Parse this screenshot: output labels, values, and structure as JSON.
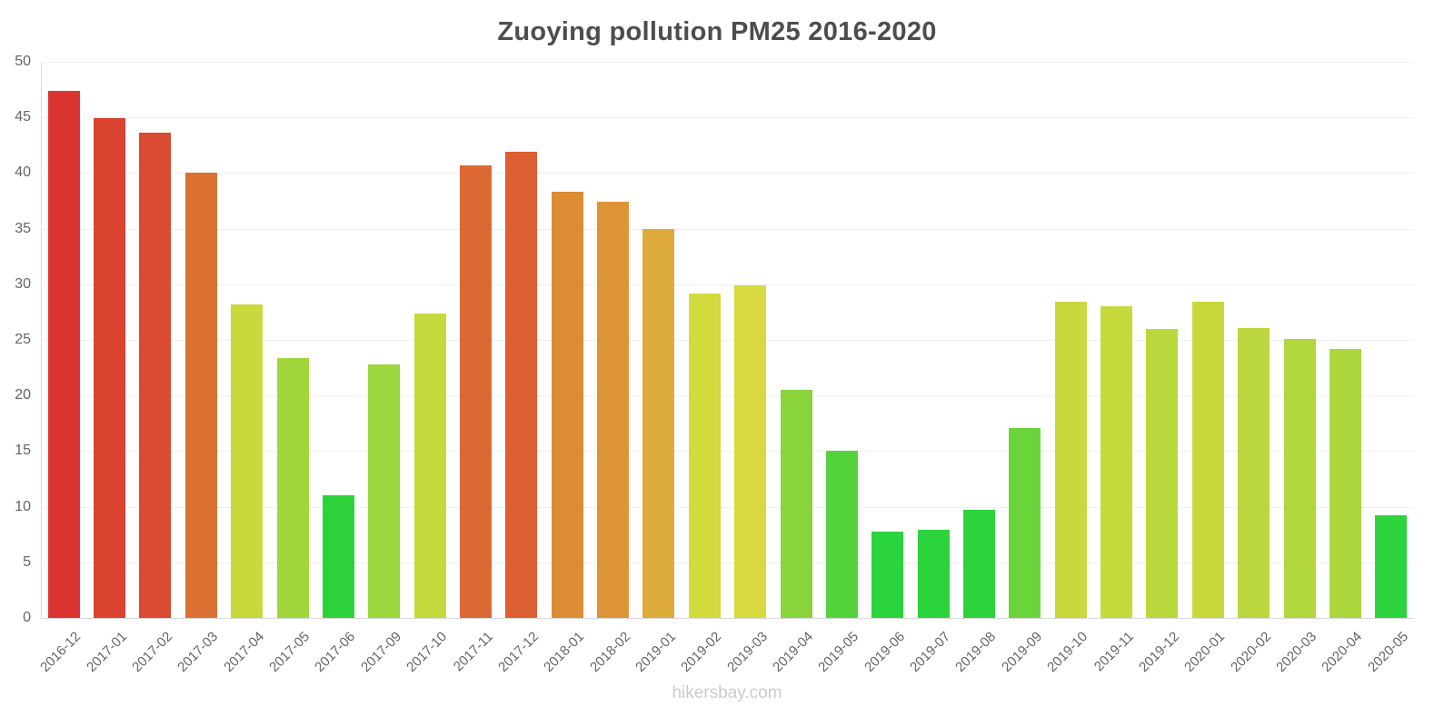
{
  "page": {
    "title": "Zuoying pollution PM25 2016-2020",
    "watermark": "hikersbay.com"
  },
  "chart_data": {
    "type": "bar",
    "title": "Zuoying pollution PM25 2016-2020",
    "xlabel": "",
    "ylabel": "",
    "ylim": [
      0,
      50
    ],
    "yticks": [
      0,
      5,
      10,
      15,
      20,
      25,
      30,
      35,
      40,
      45,
      50
    ],
    "grid": true,
    "legend": false,
    "categories": [
      "2016-12",
      "2017-01",
      "2017-02",
      "2017-03",
      "2017-04",
      "2017-05",
      "2017-06",
      "2017-09",
      "2017-10",
      "2017-11",
      "2017-12",
      "2018-01",
      "2018-02",
      "2019-01",
      "2019-02",
      "2019-03",
      "2019-04",
      "2019-05",
      "2019-06",
      "2019-07",
      "2019-08",
      "2019-09",
      "2019-10",
      "2019-11",
      "2019-12",
      "2020-01",
      "2020-02",
      "2020-03",
      "2020-04",
      "2020-05"
    ],
    "values": [
      47.4,
      44.9,
      43.6,
      40.0,
      28.2,
      23.4,
      11.0,
      22.8,
      27.4,
      40.7,
      41.9,
      38.3,
      37.4,
      35.0,
      29.2,
      29.9,
      20.5,
      15.0,
      7.8,
      7.9,
      9.7,
      17.1,
      28.4,
      28.0,
      26.0,
      28.4,
      26.1,
      25.1,
      24.2,
      9.2
    ],
    "bar_colors": [
      "#db3430",
      "#db4331",
      "#db4a32",
      "#dc7134",
      "#c8d93d",
      "#a0d63c",
      "#2ed33c",
      "#9cd53c",
      "#c4d93d",
      "#dc6933",
      "#dc5e33",
      "#dc8b36",
      "#dc9437",
      "#dcab39",
      "#d2da3e",
      "#d8d93e",
      "#89d43b",
      "#55d33c",
      "#2bd33c",
      "#2bd33c",
      "#2dd33c",
      "#6bd43b",
      "#c9d93d",
      "#c6d93d",
      "#b9d83d",
      "#c9d93d",
      "#bad83d",
      "#b2d73c",
      "#abd73c",
      "#2dd33c"
    ]
  }
}
